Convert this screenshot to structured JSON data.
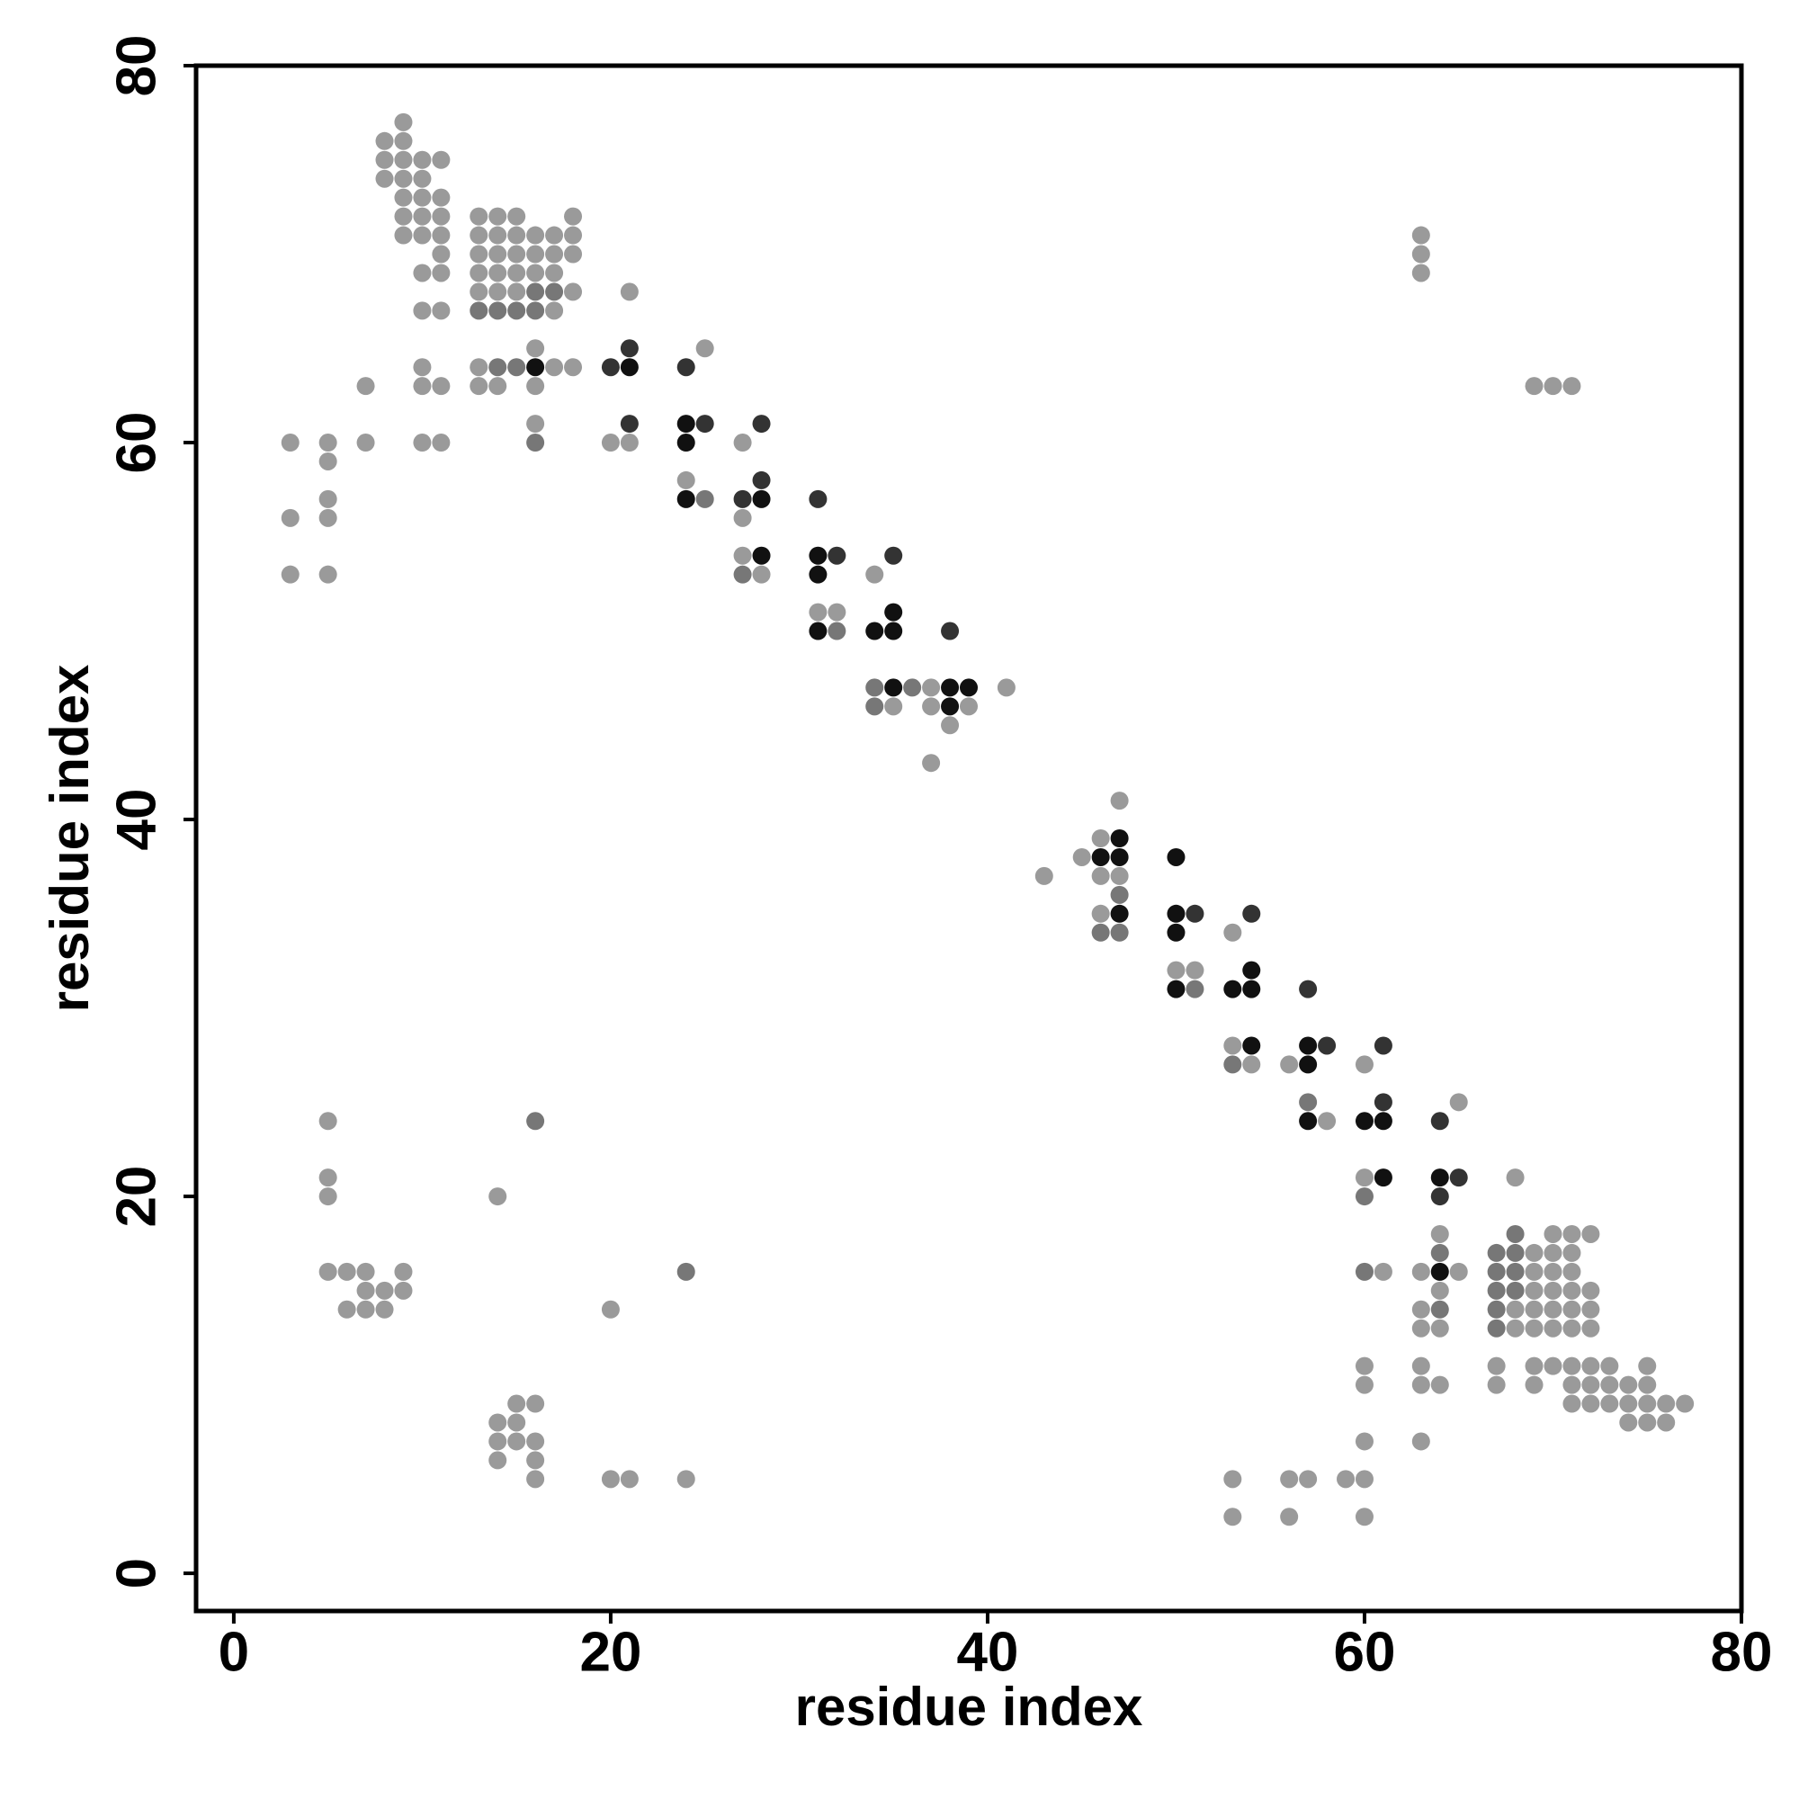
{
  "chart_data": {
    "type": "scatter",
    "x_label": "residue index",
    "y_label": "residue index",
    "xlim": [
      -2,
      80
    ],
    "ylim": [
      -2,
      80
    ],
    "xticks": [
      0,
      20,
      40,
      60,
      80
    ],
    "yticks": [
      0,
      20,
      40,
      60,
      80
    ],
    "series": [
      {
        "color": "#9a9a9a",
        "x": [
          9,
          8,
          9,
          8,
          9,
          10,
          11,
          8,
          9,
          10,
          9,
          10,
          11,
          9,
          10,
          11,
          13,
          14,
          15,
          18,
          9,
          10,
          11,
          13,
          14,
          15,
          16,
          17,
          18,
          63,
          11,
          13,
          14,
          15,
          16,
          17,
          18,
          63,
          10,
          11,
          13,
          14,
          15,
          16,
          17,
          63,
          13,
          14,
          15,
          18,
          21,
          10,
          11,
          17,
          16,
          25,
          10,
          13,
          17,
          18,
          7,
          10,
          11,
          13,
          14,
          16,
          69,
          70,
          71,
          16,
          3,
          5,
          7,
          10,
          11,
          20,
          21,
          27,
          5,
          24,
          5,
          3,
          5,
          27,
          27,
          3,
          5,
          28,
          34,
          31,
          32,
          37,
          41,
          35,
          37,
          39,
          38,
          37,
          47,
          46,
          45,
          43,
          46,
          47,
          46,
          53,
          50,
          51,
          53,
          54,
          56,
          60,
          65,
          5,
          58,
          5,
          60,
          68,
          5,
          14,
          64,
          70,
          71,
          72,
          69,
          70,
          71,
          5,
          6,
          7,
          9,
          61,
          63,
          65,
          69,
          70,
          71,
          7,
          8,
          9,
          64,
          69,
          70,
          71,
          72,
          6,
          7,
          8,
          20,
          63,
          68,
          69,
          70,
          71,
          72,
          63,
          64,
          68,
          69,
          70,
          71,
          72,
          60,
          63,
          67,
          69,
          70,
          71,
          72,
          73,
          75,
          60,
          63,
          64,
          67,
          69,
          71,
          72,
          73,
          74,
          75,
          15,
          16,
          71,
          72,
          73,
          74,
          75,
          76,
          77,
          14,
          15,
          74,
          75,
          76,
          14,
          15,
          16,
          60,
          63,
          14,
          16,
          16,
          20,
          21,
          24,
          53,
          56,
          57,
          59,
          60,
          53,
          56,
          60
        ],
        "y": [
          77,
          76,
          76,
          75,
          75,
          75,
          75,
          74,
          74,
          74,
          73,
          73,
          73,
          72,
          72,
          72,
          72,
          72,
          72,
          72,
          71,
          71,
          71,
          71,
          71,
          71,
          71,
          71,
          71,
          71,
          70,
          70,
          70,
          70,
          70,
          70,
          70,
          70,
          69,
          69,
          69,
          69,
          69,
          69,
          69,
          69,
          68,
          68,
          68,
          68,
          68,
          67,
          67,
          67,
          65,
          65,
          64,
          64,
          64,
          64,
          63,
          63,
          63,
          63,
          63,
          63,
          63,
          63,
          63,
          61,
          60,
          60,
          60,
          60,
          60,
          60,
          60,
          60,
          59,
          58,
          57,
          56,
          56,
          56,
          54,
          53,
          53,
          53,
          53,
          51,
          51,
          47,
          47,
          46,
          46,
          46,
          45,
          43,
          41,
          39,
          38,
          37,
          37,
          37,
          35,
          34,
          32,
          32,
          28,
          27,
          27,
          27,
          25,
          24,
          24,
          21,
          21,
          21,
          20,
          20,
          18,
          18,
          18,
          18,
          17,
          17,
          17,
          16,
          16,
          16,
          16,
          16,
          16,
          16,
          16,
          16,
          16,
          15,
          15,
          15,
          15,
          15,
          15,
          15,
          15,
          14,
          14,
          14,
          14,
          14,
          14,
          14,
          14,
          14,
          14,
          13,
          13,
          13,
          13,
          13,
          13,
          13,
          11,
          11,
          11,
          11,
          11,
          11,
          11,
          11,
          11,
          10,
          10,
          10,
          10,
          10,
          10,
          10,
          10,
          10,
          10,
          9,
          9,
          9,
          9,
          9,
          9,
          9,
          9,
          9,
          8,
          8,
          8,
          8,
          8,
          7,
          7,
          7,
          7,
          7,
          6,
          6,
          5,
          5,
          5,
          5,
          5,
          5,
          5,
          5,
          5,
          3,
          3,
          3
        ]
      },
      {
        "color": "#777777",
        "x": [
          16,
          15,
          14,
          13,
          16,
          17,
          15,
          14,
          16,
          25,
          27,
          32,
          34,
          36,
          34,
          47,
          46,
          47,
          51,
          53,
          57,
          16,
          60,
          24,
          60,
          64,
          67,
          68,
          68,
          67,
          68,
          67,
          68,
          64,
          67,
          67
        ],
        "y": [
          67,
          67,
          67,
          67,
          68,
          68,
          64,
          64,
          60,
          57,
          53,
          50,
          47,
          47,
          46,
          36,
          34,
          34,
          31,
          27,
          25,
          24,
          20,
          16,
          16,
          17,
          17,
          18,
          17,
          16,
          16,
          15,
          15,
          14,
          14,
          13
        ]
      },
      {
        "color": "#333333",
        "x": [
          21,
          20,
          24,
          21,
          25,
          28,
          28,
          27,
          31,
          32,
          35,
          38,
          51,
          54,
          57,
          58,
          61,
          61,
          64,
          65,
          64
        ],
        "y": [
          65,
          64,
          64,
          61,
          61,
          61,
          58,
          57,
          57,
          54,
          54,
          50,
          35,
          35,
          31,
          28,
          28,
          25,
          24,
          21,
          20
        ]
      },
      {
        "color": "#111111",
        "x": [
          16,
          21,
          24,
          24,
          24,
          28,
          28,
          31,
          31,
          35,
          31,
          34,
          35,
          35,
          38,
          39,
          38,
          47,
          46,
          47,
          50,
          47,
          50,
          50,
          54,
          50,
          53,
          54,
          54,
          57,
          57,
          57,
          60,
          61,
          61,
          64,
          64
        ],
        "y": [
          64,
          64,
          61,
          60,
          57,
          57,
          54,
          54,
          53,
          51,
          50,
          50,
          50,
          47,
          47,
          47,
          46,
          39,
          38,
          38,
          38,
          35,
          35,
          34,
          32,
          31,
          31,
          31,
          28,
          28,
          27,
          24,
          24,
          24,
          21,
          21,
          16
        ]
      }
    ]
  }
}
